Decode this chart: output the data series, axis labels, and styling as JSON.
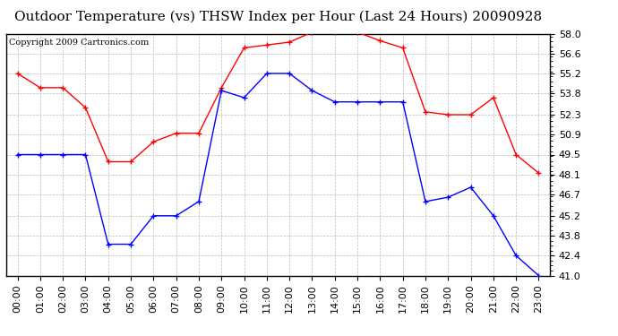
{
  "title": "Outdoor Temperature (vs) THSW Index per Hour (Last 24 Hours) 20090928",
  "copyright": "Copyright 2009 Cartronics.com",
  "hours": [
    0,
    1,
    2,
    3,
    4,
    5,
    6,
    7,
    8,
    9,
    10,
    11,
    12,
    13,
    14,
    15,
    16,
    17,
    18,
    19,
    20,
    21,
    22,
    23
  ],
  "hour_labels": [
    "00:00",
    "01:00",
    "02:00",
    "03:00",
    "04:00",
    "05:00",
    "06:00",
    "07:00",
    "08:00",
    "09:00",
    "10:00",
    "11:00",
    "12:00",
    "13:00",
    "14:00",
    "15:00",
    "16:00",
    "17:00",
    "18:00",
    "19:00",
    "20:00",
    "21:00",
    "22:00",
    "23:00"
  ],
  "temp_red": [
    55.2,
    54.2,
    54.2,
    52.8,
    49.0,
    49.0,
    50.4,
    51.0,
    51.0,
    54.2,
    57.0,
    57.2,
    57.4,
    58.1,
    58.1,
    58.1,
    57.5,
    57.0,
    52.5,
    52.3,
    52.3,
    53.5,
    49.5,
    48.2
  ],
  "temp_blue": [
    49.5,
    49.5,
    49.5,
    49.5,
    43.2,
    43.2,
    45.2,
    45.2,
    46.2,
    54.0,
    53.5,
    55.2,
    55.2,
    54.0,
    53.2,
    53.2,
    53.2,
    53.2,
    46.2,
    46.5,
    47.2,
    45.2,
    42.4,
    41.0
  ],
  "ylim_min": 41.0,
  "ylim_max": 58.0,
  "yticks": [
    41.0,
    42.4,
    43.8,
    45.2,
    46.7,
    48.1,
    49.5,
    50.9,
    52.3,
    53.8,
    55.2,
    56.6,
    58.0
  ],
  "red_color": "#FF0000",
  "blue_color": "#0000FF",
  "bg_color": "#FFFFFF",
  "grid_color": "#BBBBBB",
  "title_fontsize": 11,
  "copyright_fontsize": 7,
  "tick_fontsize": 8,
  "marker_size": 4
}
